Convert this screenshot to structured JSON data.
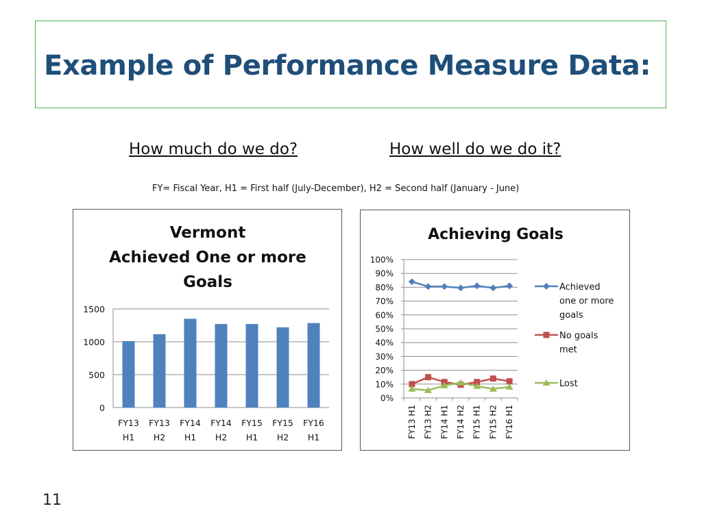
{
  "slide": {
    "title": "Example of Performance Measure Data:",
    "heading_left": "How much do we do?",
    "heading_right": "How well do we do it?",
    "footnote": "FY= Fiscal Year,  H1 = First half (July-December), H2 = Second half (January - June)",
    "page_number": "11"
  },
  "chart_data": [
    {
      "type": "bar",
      "title_lines": [
        "Vermont",
        "Achieved One or more",
        "Goals"
      ],
      "categories": [
        [
          "FY13",
          "H1"
        ],
        [
          "FY13",
          "H2"
        ],
        [
          "FY14",
          "H1"
        ],
        [
          "FY14",
          "H2"
        ],
        [
          "FY15",
          "H1"
        ],
        [
          "FY15",
          "H2"
        ],
        [
          "FY16",
          "H1"
        ]
      ],
      "values": [
        1010,
        1115,
        1350,
        1270,
        1270,
        1220,
        1285
      ],
      "ylim": [
        0,
        1500
      ],
      "yticks": [
        0,
        500,
        1000,
        1500
      ],
      "grid": true,
      "legend": "none",
      "bar_color": "#4f81bd"
    },
    {
      "type": "line",
      "title": "Achieving Goals",
      "categories": [
        "FY13 H1",
        "FY13 H2",
        "FY14 H1",
        "FY14 H2",
        "FY15 H1",
        "FY15 H2",
        "FY16 H1"
      ],
      "ylim": [
        0,
        100
      ],
      "yticks": [
        "0%",
        "10%",
        "20%",
        "30%",
        "40%",
        "50%",
        "60%",
        "70%",
        "80%",
        "90%",
        "100%"
      ],
      "grid": true,
      "legend": "right",
      "series": [
        {
          "name_lines": [
            "Achieved",
            "one or more",
            "goals"
          ],
          "color": "#4f81bd",
          "marker": "diamond",
          "values": [
            84,
            80.5,
            80.5,
            79.5,
            81,
            79.5,
            81
          ]
        },
        {
          "name_lines": [
            "No goals",
            "met"
          ],
          "color": "#c0504d",
          "marker": "square",
          "values": [
            10,
            15,
            11.5,
            9.5,
            11.5,
            14,
            12
          ]
        },
        {
          "name_lines": [
            "Lost"
          ],
          "color": "#9bbb59",
          "marker": "triangle",
          "values": [
            6.5,
            5.5,
            9,
            11,
            8.5,
            6.5,
            8
          ]
        }
      ]
    }
  ]
}
